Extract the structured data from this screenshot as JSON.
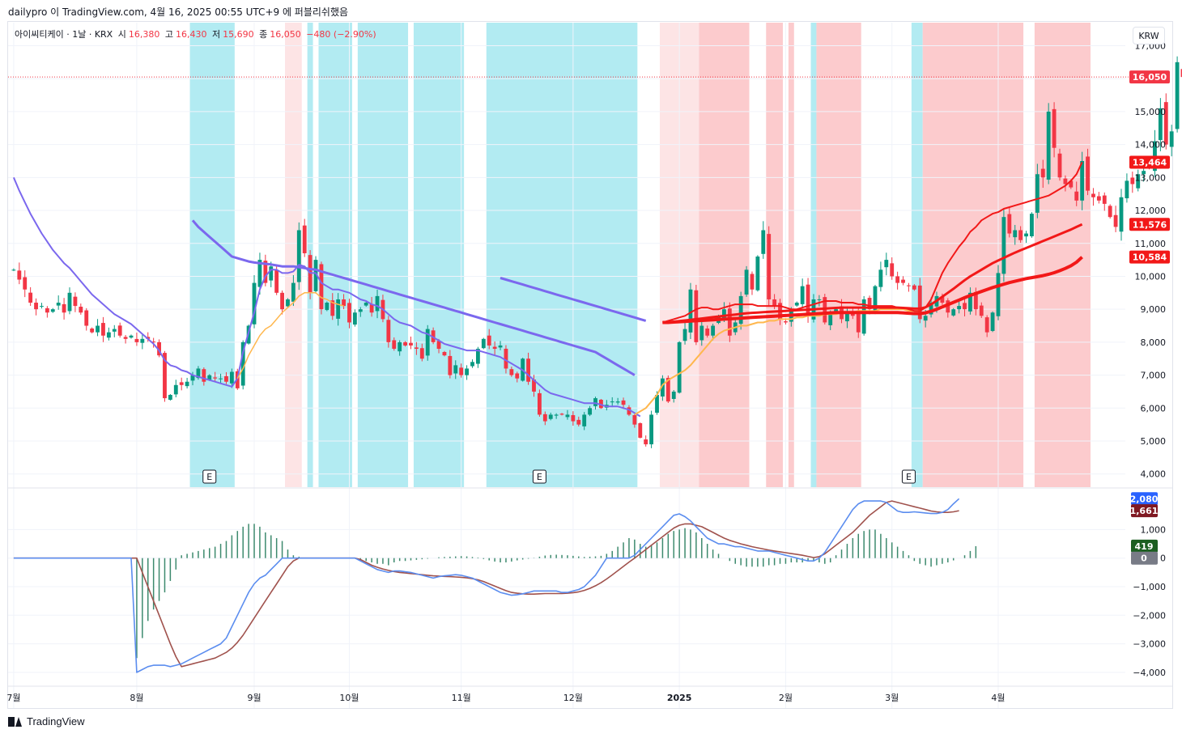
{
  "header": {
    "publisher": "dailypro 이 TradingView.com, 4월 16, 2025 00:55 UTC+9 에 퍼블리쉬했음"
  },
  "legend": {
    "symbol": "아이씨티케이 · 1날 · KRX",
    "open_label": "시",
    "open": "16,380",
    "high_label": "고",
    "high": "16,430",
    "low_label": "저",
    "low": "15,690",
    "close_label": "종",
    "close": "16,050",
    "change": "−480 (−2.90%)"
  },
  "currency": "KRW",
  "footer": {
    "brand": "TradingView"
  },
  "colors": {
    "up": "#089981",
    "down": "#f23645",
    "bg_blue": "#b2ebf2",
    "bg_red": "#fccbcd",
    "bg_lightred": "#fde4e5",
    "ema_purple": "#7b68ee",
    "ema_red": "#f21818",
    "ema_orange": "#ffb74d",
    "macd": "#5b8def",
    "signal": "#a0524d",
    "hist": "#3d8a6e"
  },
  "chart_data": {
    "type": "candlestick",
    "months": [
      {
        "label": "7월",
        "idx": 0
      },
      {
        "label": "8월",
        "idx": 22
      },
      {
        "label": "9월",
        "idx": 43
      },
      {
        "label": "10월",
        "idx": 60
      },
      {
        "label": "11월",
        "idx": 80
      },
      {
        "label": "12월",
        "idx": 100
      },
      {
        "label": "2025",
        "idx": 119
      },
      {
        "label": "2월",
        "idx": 138
      },
      {
        "label": "3월",
        "idx": 157
      },
      {
        "label": "4월",
        "idx": 176
      }
    ],
    "x_range": [
      -1,
      198
    ],
    "price_axis": {
      "ylim": [
        3600,
        17700
      ],
      "ticks": [
        "17,000",
        "16,000",
        "15,000",
        "14,000",
        "13,000",
        "12,000",
        "11,000",
        "10,000",
        "9,000",
        "8,000",
        "7,000",
        "6,000",
        "5,000",
        "4,000"
      ],
      "tick_values": [
        17000,
        16000,
        15000,
        14000,
        13000,
        12000,
        11000,
        10000,
        9000,
        8000,
        7000,
        6000,
        5000,
        4000
      ]
    },
    "price_labels": [
      {
        "text": "16,050",
        "value": 16050,
        "color": "#f23645"
      },
      {
        "text": "13,464",
        "value": 13464,
        "color": "#f21818"
      },
      {
        "text": "11,576",
        "value": 11576,
        "color": "#f21818"
      },
      {
        "text": "10,584",
        "value": 10584,
        "color": "#f21818"
      }
    ],
    "macd_axis": {
      "ylim": [
        -4400,
        2400
      ],
      "ticks": [
        "1,000",
        "0",
        "−1,000",
        "−2,000",
        "−3,000",
        "−4,000"
      ],
      "tick_values": [
        1000,
        0,
        -1000,
        -2000,
        -3000,
        -4000
      ]
    },
    "macd_labels": [
      {
        "text": "2,080",
        "value": 2080,
        "color": "#2962ff"
      },
      {
        "text": "1,661",
        "value": 1661,
        "color": "#801922"
      },
      {
        "text": "419",
        "value": 419,
        "color": "#1b5e20"
      },
      {
        "text": "0",
        "value": 0,
        "color": "#787b86"
      }
    ],
    "earnings_marks": [
      {
        "text": "E",
        "idx": 35
      },
      {
        "text": "E",
        "idx": 94
      },
      {
        "text": "E",
        "idx": 160
      }
    ],
    "bands": [
      {
        "from": 32,
        "to": 40,
        "kind": "blue"
      },
      {
        "from": 49,
        "to": 52,
        "kind": "lightred"
      },
      {
        "from": 53,
        "to": 54,
        "kind": "blue"
      },
      {
        "from": 55,
        "to": 61,
        "kind": "blue"
      },
      {
        "from": 62,
        "to": 71,
        "kind": "blue"
      },
      {
        "from": 72,
        "to": 81,
        "kind": "blue"
      },
      {
        "from": 85,
        "to": 112,
        "kind": "blue"
      },
      {
        "from": 116,
        "to": 123,
        "kind": "lightred"
      },
      {
        "from": 123,
        "to": 132,
        "kind": "red"
      },
      {
        "from": 135,
        "to": 138,
        "kind": "red"
      },
      {
        "from": 139,
        "to": 140,
        "kind": "red"
      },
      {
        "from": 143,
        "to": 144,
        "kind": "blue"
      },
      {
        "from": 144,
        "to": 152,
        "kind": "red"
      },
      {
        "from": 161,
        "to": 163,
        "kind": "blue"
      },
      {
        "from": 163,
        "to": 181,
        "kind": "red"
      },
      {
        "from": 183,
        "to": 193,
        "kind": "red"
      }
    ],
    "close": [
      10200,
      9900,
      9600,
      9200,
      9000,
      9100,
      8900,
      9000,
      9200,
      8900,
      9500,
      9100,
      8900,
      8500,
      8300,
      8500,
      8200,
      8300,
      8400,
      8200,
      8100,
      8200,
      8000,
      8100,
      8100,
      8000,
      7600,
      6300,
      6400,
      6700,
      6700,
      6800,
      7000,
      7200,
      6800,
      7000,
      6900,
      6900,
      6800,
      7100,
      6600,
      8000,
      8500,
      9800,
      10500,
      9800,
      10300,
      9500,
      9000,
      9300,
      9800,
      11400,
      10700,
      9500,
      10500,
      9000,
      9200,
      8800,
      9300,
      9100,
      8600,
      8900,
      9000,
      9200,
      8900,
      9400,
      8700,
      8000,
      7800,
      8000,
      7900,
      7900,
      7800,
      7500,
      8400,
      8000,
      7800,
      7600,
      7000,
      7300,
      7000,
      7200,
      7400,
      7800,
      8100,
      7900,
      7800,
      7900,
      7200,
      7000,
      6900,
      7500,
      6800,
      6500,
      5800,
      5600,
      5800,
      5800,
      5800,
      5800,
      5600,
      5500,
      5800,
      6000,
      6300,
      6000,
      6100,
      6200,
      6200,
      6100,
      5800,
      5500,
      5100,
      4900,
      5800,
      6400,
      6900,
      6200,
      6500,
      8000,
      8400,
      9600,
      8000,
      8500,
      8200,
      8500,
      8800,
      9000,
      8200,
      8600,
      9400,
      10200,
      9600,
      10600,
      11400,
      9300,
      9100,
      8700,
      8600,
      9000,
      9200,
      9700,
      8800,
      9300,
      9300,
      8600,
      8900,
      9000,
      8700,
      8900,
      8800,
      8300,
      9300,
      9000,
      9700,
      10200,
      10500,
      10000,
      9800,
      9800,
      9700,
      9600,
      8700,
      8800,
      9200,
      9400,
      9200,
      8900,
      9000,
      9100,
      9000,
      9500,
      9000,
      8800,
      8300,
      8900,
      10100,
      11800,
      11300,
      11400,
      11100,
      11300,
      11900,
      13100,
      13000,
      15000,
      13900,
      13000,
      12800,
      12700,
      12300,
      13500,
      12600,
      12400,
      12300,
      12200,
      11800,
      11500,
      12400,
      12900,
      12800,
      13100,
      13200,
      13300,
      14100,
      15100,
      14000,
      14400,
      16500,
      16050
    ],
    "ema_purple": [
      13000,
      12600,
      12250,
      11900,
      11600,
      11300,
      11050,
      10800,
      10600,
      10400,
      10250,
      10050,
      9850,
      9650,
      9450,
      9300,
      9150,
      9000,
      8850,
      8750,
      8650,
      8550,
      8400,
      8250,
      8100,
      7950,
      7750,
      7450,
      7300,
      7250,
      7150,
      7100,
      7000,
      6950,
      6900,
      6850,
      6800,
      6750,
      6700,
      6650,
      6900,
      7700,
      8300,
      8900,
      9600,
      10000,
      10200,
      10200,
      10100,
      10100,
      10150,
      10350,
      10300,
      10100,
      10100,
      9800,
      9700,
      9600,
      9600,
      9550,
      9500,
      9400,
      9300,
      9250,
      9150,
      9100,
      9000,
      8850,
      8700,
      8600,
      8550,
      8500,
      8400,
      8300,
      8250,
      8150,
      8050,
      7950,
      7900,
      7850,
      7800,
      7750,
      7750,
      7750,
      7700,
      7650,
      7600,
      7550,
      7450,
      7350,
      7250,
      7150,
      7000,
      6850,
      6700,
      6550,
      6450,
      6400,
      6350,
      6300,
      6250,
      6200,
      6150,
      6150,
      6150,
      6100,
      6050,
      6050,
      6050,
      6000,
      5950,
      5850,
      5750
    ],
    "ema_slow_purple_start": 32,
    "ema_slow_purple": [
      11700,
      11500,
      11350,
      11200,
      11050,
      10900,
      10750,
      10600,
      10550,
      10500,
      10450,
      10420,
      10400,
      10380,
      10360,
      10330,
      10300,
      10300,
      10300,
      10280,
      10250,
      10220,
      10200,
      10150,
      10100,
      10050,
      10000,
      9950,
      9900,
      9850,
      9800,
      9750,
      9700,
      9650,
      9600,
      9550,
      9500,
      9450,
      9400,
      9350,
      9300,
      9250,
      9200,
      9150,
      9100,
      9050,
      9000,
      8950,
      8900,
      8850,
      8800,
      8750,
      8700,
      8650,
      8600,
      8550,
      8500,
      8450,
      8400,
      8350,
      8300,
      8250,
      8200,
      8150,
      8100,
      8050,
      8000,
      7950,
      7900,
      7850,
      7800,
      7750,
      7700,
      7600,
      7500,
      7400,
      7300,
      7200,
      7100,
      7000
    ],
    "ema_mid_purple_start": 87,
    "ema_mid_purple": [
      9950,
      9900,
      9850,
      9800,
      9750,
      9700,
      9650,
      9600,
      9550,
      9500,
      9450,
      9400,
      9350,
      9300,
      9250,
      9200,
      9150,
      9100,
      9050,
      9000,
      8950,
      8900,
      8850,
      8800,
      8750,
      8700,
      8650
    ],
    "ema_orange_start": 40,
    "ema_orange": [
      6900,
      7200,
      7600,
      7900,
      8200,
      8400,
      8500,
      8700,
      8900,
      9050,
      9200,
      9400,
      9500,
      9500,
      9500,
      9350,
      9300,
      9200,
      9150,
      9100
    ],
    "ema_orange2_start": 111,
    "ema_orange2": [
      5800,
      5900,
      6000,
      6200,
      6400,
      6700,
      6850,
      6950,
      7050,
      7150,
      7300,
      7500,
      7700,
      7900,
      8100,
      8250,
      8350,
      8400,
      8450,
      8500,
      8500,
      8550,
      8600,
      8600,
      8650,
      8650,
      8700,
      8700,
      8700,
      8750,
      8750,
      8800,
      8800,
      8800,
      8850,
      8850,
      8850,
      8900,
      8900,
      8900,
      8950,
      8950,
      8950,
      8950,
      9000,
      9000,
      9000,
      9000,
      9000,
      8950,
      8950,
      8950
    ],
    "ema_red_start": 116,
    "ema_red": [
      8600,
      8650,
      8700,
      8750,
      8800,
      8900,
      9000,
      9050,
      9050,
      9000,
      9000,
      9050,
      9100,
      9150,
      9150,
      9150,
      9150,
      9100,
      9100,
      9100,
      9100,
      9100,
      9050,
      9000,
      9000,
      9050,
      9100,
      9150,
      9200,
      9250,
      9250,
      9250,
      9200,
      9200,
      9200,
      9150,
      9150,
      9100,
      9100,
      9100,
      9100,
      9100,
      9050,
      9050,
      9000,
      8950,
      8950,
      9050,
      9300,
      9700,
      10100,
      10400,
      10650,
      10900,
      11100,
      11350,
      11500,
      11700,
      11800,
      11900,
      11950,
      12050,
      12100,
      12150,
      12200,
      12250,
      12300,
      12350,
      12400,
      12450,
      12550,
      12650,
      12750,
      12900,
      13100,
      13464
    ],
    "ema_red2_start": 116,
    "ema_red2": [
      8600,
      8600,
      8620,
      8640,
      8660,
      8680,
      8700,
      8720,
      8740,
      8760,
      8780,
      8800,
      8820,
      8840,
      8860,
      8880,
      8890,
      8900,
      8910,
      8920,
      8930,
      8940,
      8950,
      8960,
      8970,
      8980,
      8990,
      9000,
      9010,
      9020,
      9030,
      9040,
      9050,
      9050,
      9050,
      9050,
      9050,
      9050,
      9050,
      9050,
      9050,
      9050,
      9050,
      9040,
      9030,
      9020,
      9020,
      9060,
      9150,
      9260,
      9380,
      9500,
      9620,
      9750,
      9880,
      10000,
      10100,
      10200,
      10300,
      10400,
      10480,
      10560,
      10640,
      10720,
      10790,
      10860,
      10930,
      11000,
      11070,
      11140,
      11210,
      11280,
      11350,
      11420,
      11500,
      11576
    ],
    "ema_red3_start": 116,
    "ema_red3": [
      8600,
      8600,
      8610,
      8620,
      8630,
      8640,
      8650,
      8660,
      8670,
      8680,
      8690,
      8700,
      8710,
      8720,
      8730,
      8740,
      8750,
      8760,
      8770,
      8780,
      8790,
      8800,
      8810,
      8820,
      8830,
      8840,
      8850,
      8860,
      8870,
      8880,
      8890,
      8900,
      8900,
      8900,
      8900,
      8900,
      8900,
      8900,
      8900,
      8900,
      8900,
      8900,
      8900,
      8890,
      8880,
      8870,
      8870,
      8890,
      8940,
      9000,
      9070,
      9140,
      9210,
      9280,
      9350,
      9420,
      9480,
      9540,
      9600,
      9660,
      9710,
      9760,
      9810,
      9850,
      9890,
      9930,
      9960,
      9990,
      10020,
      10060,
      10110,
      10170,
      10240,
      10320,
      10430,
      10584
    ],
    "macd": [
      0,
      0,
      0,
      0,
      0,
      0,
      0,
      0,
      0,
      0,
      0,
      0,
      0,
      0,
      0,
      0,
      0,
      0,
      0,
      0,
      0,
      0,
      -4000,
      -3900,
      -3800,
      -3750,
      -3750,
      -3750,
      -3800,
      -3750,
      -3700,
      -3600,
      -3500,
      -3400,
      -3300,
      -3200,
      -3100,
      -3000,
      -2800,
      -2400,
      -2000,
      -1600,
      -1200,
      -900,
      -700,
      -600,
      -400,
      -200,
      0,
      0,
      0,
      0,
      0,
      0,
      0,
      0,
      0,
      0,
      0,
      0,
      0,
      0,
      -100,
      -200,
      -300,
      -400,
      -450,
      -500,
      -450,
      -450,
      -480,
      -500,
      -550,
      -600,
      -650,
      -700,
      -650,
      -620,
      -600,
      -580,
      -600,
      -650,
      -700,
      -800,
      -900,
      -1000,
      -1100,
      -1200,
      -1250,
      -1300,
      -1280,
      -1250,
      -1200,
      -1150,
      -1150,
      -1150,
      -1150,
      -1150,
      -1200,
      -1200,
      -1150,
      -1100,
      -1000,
      -800,
      -600,
      -300,
      0,
      0,
      0,
      0,
      0,
      100,
      300,
      500,
      700,
      900,
      1100,
      1300,
      1500,
      1550,
      1450,
      1300,
      1100,
      900,
      700,
      600,
      500,
      500,
      450,
      400,
      400,
      350,
      300,
      250,
      250,
      250,
      200,
      150,
      100,
      50,
      0,
      -50,
      -100,
      -100,
      0,
      200,
      500,
      800,
      1100,
      1400,
      1700,
      1900,
      2000,
      2000,
      2000,
      2000,
      1950,
      1800,
      1650,
      1600,
      1600,
      1620,
      1600,
      1580,
      1560,
      1560,
      1600,
      1700,
      1900,
      2080
    ],
    "signal": [
      0,
      0,
      0,
      0,
      0,
      0,
      0,
      0,
      0,
      0,
      0,
      0,
      0,
      0,
      0,
      0,
      0,
      0,
      0,
      0,
      0,
      0,
      0,
      -500,
      -1000,
      -1500,
      -2000,
      -2500,
      -3000,
      -3450,
      -3800,
      -3750,
      -3700,
      -3650,
      -3600,
      -3550,
      -3500,
      -3400,
      -3300,
      -3150,
      -2950,
      -2700,
      -2400,
      -2100,
      -1800,
      -1500,
      -1200,
      -900,
      -600,
      -300,
      -100,
      0,
      0,
      0,
      0,
      0,
      0,
      0,
      0,
      0,
      0,
      0,
      -50,
      -150,
      -250,
      -320,
      -380,
      -430,
      -470,
      -500,
      -520,
      -540,
      -560,
      -580,
      -600,
      -620,
      -630,
      -640,
      -650,
      -660,
      -670,
      -690,
      -720,
      -760,
      -820,
      -900,
      -980,
      -1060,
      -1140,
      -1200,
      -1230,
      -1250,
      -1260,
      -1260,
      -1250,
      -1240,
      -1240,
      -1240,
      -1240,
      -1230,
      -1210,
      -1180,
      -1130,
      -1060,
      -970,
      -860,
      -730,
      -590,
      -440,
      -290,
      -140,
      0,
      150,
      300,
      450,
      600,
      750,
      900,
      1050,
      1150,
      1200,
      1200,
      1150,
      1100,
      1000,
      900,
      800,
      700,
      620,
      560,
      500,
      450,
      400,
      360,
      320,
      280,
      250,
      220,
      190,
      160,
      130,
      100,
      60,
      20,
      50,
      150,
      300,
      450,
      600,
      750,
      900,
      1100,
      1300,
      1500,
      1650,
      1800,
      1950,
      2000,
      1950,
      1900,
      1850,
      1800,
      1750,
      1700,
      1650,
      1620,
      1600,
      1600,
      1620,
      1661
    ],
    "hist": [
      0,
      0,
      0,
      0,
      0,
      0,
      0,
      0,
      0,
      0,
      0,
      0,
      0,
      0,
      0,
      0,
      0,
      0,
      0,
      0,
      0,
      0,
      -3500,
      -2800,
      -2200,
      -1800,
      -1500,
      -1200,
      -800,
      -400,
      100,
      150,
      200,
      250,
      300,
      350,
      400,
      500,
      600,
      800,
      950,
      1100,
      1200,
      1200,
      1100,
      900,
      800,
      700,
      600,
      300,
      100,
      50,
      0,
      0,
      0,
      0,
      0,
      0,
      0,
      0,
      0,
      0,
      -50,
      -100,
      -150,
      -200,
      -200,
      -250,
      -150,
      -100,
      -100,
      -80,
      -60,
      -40,
      -20,
      0,
      30,
      40,
      50,
      60,
      70,
      60,
      40,
      20,
      -30,
      -80,
      -120,
      -150,
      -150,
      -120,
      -80,
      -50,
      -20,
      10,
      50,
      90,
      110,
      120,
      110,
      100,
      80,
      60,
      40,
      50,
      60,
      80,
      150,
      250,
      400,
      550,
      700,
      650,
      500,
      400,
      450,
      550,
      700,
      850,
      950,
      1000,
      1050,
      1000,
      900,
      700,
      500,
      300,
      150,
      0,
      -100,
      -200,
      -250,
      -300,
      -300,
      -300,
      -300,
      -250,
      -250,
      -200,
      -200,
      -150,
      -150,
      -150,
      -100,
      -100,
      -150,
      -200,
      -150,
      100,
      300,
      500,
      700,
      850,
      950,
      1000,
      1000,
      850,
      700,
      550,
      400,
      250,
      100,
      -100,
      -200,
      -250,
      -300,
      -250,
      -200,
      -150,
      -80,
      0,
      100,
      250,
      419
    ]
  }
}
